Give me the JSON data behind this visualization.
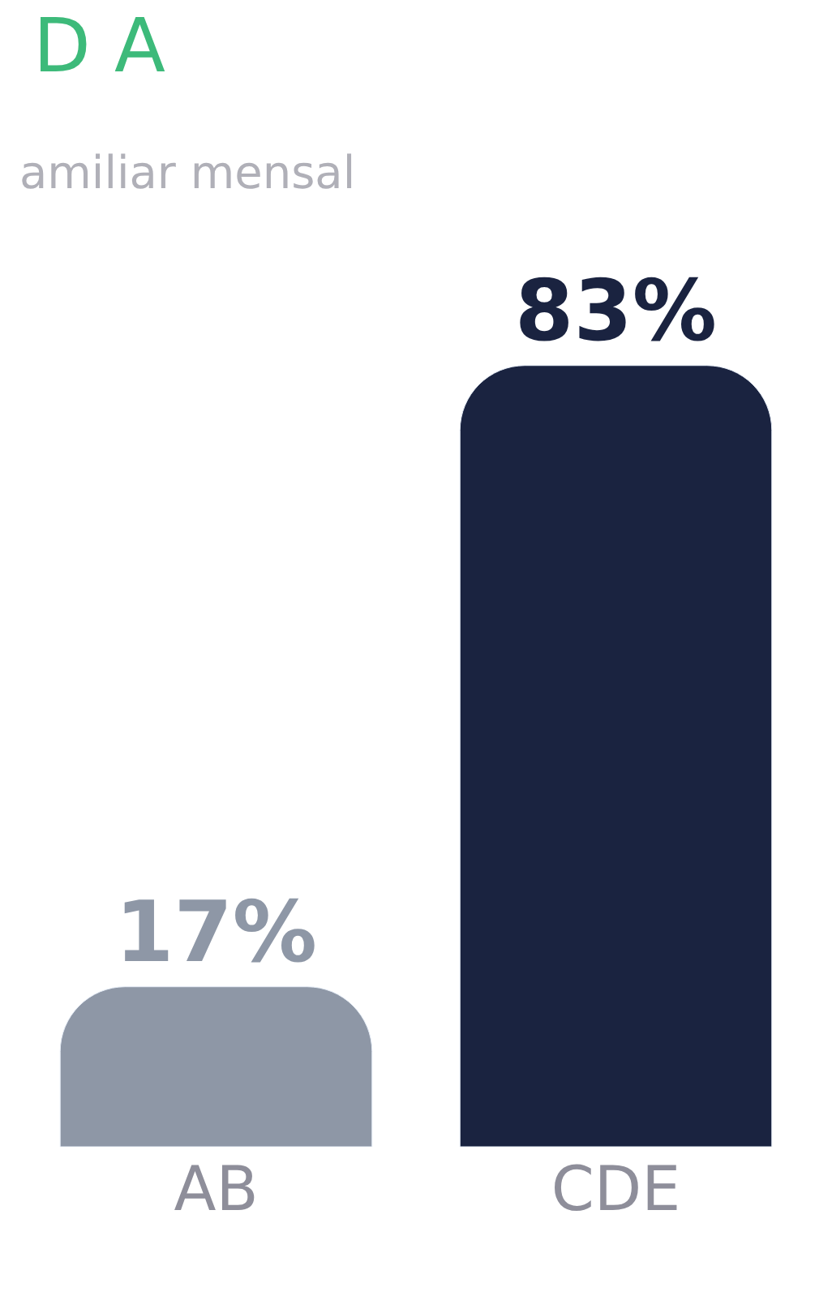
{
  "chart_data": {
    "type": "bar",
    "title": "D A",
    "subtitle": "amiliar mensal",
    "categories": [
      "AB",
      "CDE"
    ],
    "values": [
      17,
      83
    ],
    "colors": [
      "#8e97a6",
      "#1a2340"
    ],
    "value_labels": [
      "17%",
      "83%"
    ]
  }
}
